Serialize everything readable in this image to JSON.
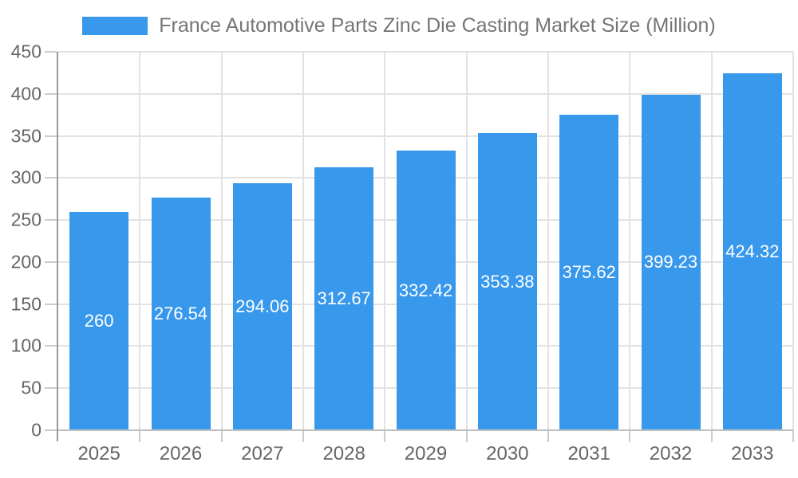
{
  "chart_data": {
    "type": "bar",
    "title": "France Automotive Parts Zinc Die Casting Market Size (Million)",
    "categories": [
      "2025",
      "2026",
      "2027",
      "2028",
      "2029",
      "2030",
      "2031",
      "2032",
      "2033"
    ],
    "values": [
      260,
      276.54,
      294.06,
      312.67,
      332.42,
      353.38,
      375.62,
      399.23,
      424.32
    ],
    "bar_labels": [
      "260",
      "276.54",
      "294.06",
      "312.67",
      "332.42",
      "353.38",
      "375.62",
      "399.23",
      "424.32"
    ],
    "xlabel": "",
    "ylabel": "",
    "ylim": [
      0,
      450
    ],
    "y_ticks": [
      0,
      50,
      100,
      150,
      200,
      250,
      300,
      350,
      400,
      450
    ],
    "grid": true,
    "legend_position": "top",
    "bar_label_position": "center-inside",
    "colors": {
      "bar": "#3898ec",
      "bar_label": "#ffffff",
      "title": "#757575",
      "tick_label": "#666666",
      "gridline": "#e2e2e2",
      "axis_line": "#999999",
      "baseline": "#c0c0c0",
      "tick_mark": "#cccccc",
      "background": "#ffffff"
    }
  }
}
